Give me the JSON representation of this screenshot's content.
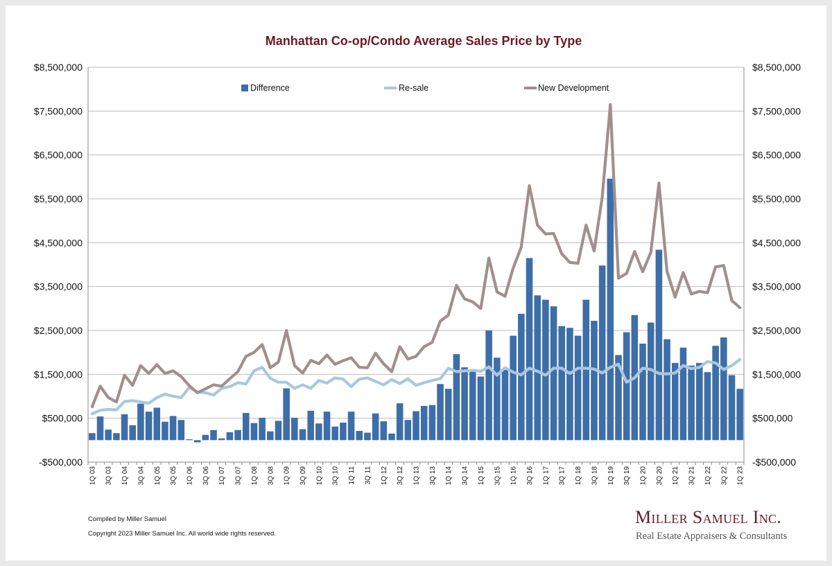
{
  "chart_data": {
    "type": "bar",
    "title": "Manhattan Co-op/Condo Average Sales Price by Type",
    "y_ticks": [
      "-$500,000",
      "$500,000",
      "$1,500,000",
      "$2,500,000",
      "$3,500,000",
      "$4,500,000",
      "$5,500,000",
      "$6,500,000",
      "$7,500,000",
      "$8,500,000"
    ],
    "ylim": [
      -500000,
      8500000
    ],
    "y2lim": [
      -500000,
      8500000
    ],
    "grid": true,
    "legend_placement": "top",
    "x_labels": [
      "1Q 03",
      "3Q 03",
      "1Q 04",
      "3Q 04",
      "1Q 05",
      "3Q 05",
      "1Q 06",
      "3Q 06",
      "1Q 07",
      "3Q 07",
      "1Q 08",
      "3Q 08",
      "1Q 09",
      "3Q 09",
      "1Q 10",
      "3Q 10",
      "1Q 11",
      "3Q 11",
      "1Q 12",
      "3Q 12",
      "1Q 13",
      "3Q 13",
      "1Q 14",
      "3Q 14",
      "1Q 15",
      "3Q 15",
      "1Q 16",
      "3Q 16",
      "1Q 17",
      "3Q 17",
      "1Q 18",
      "3Q 18",
      "1Q 19",
      "3Q 19",
      "1Q 20",
      "3Q 20",
      "1Q 21",
      "3Q 21",
      "1Q 22",
      "3Q 22",
      "1Q 23"
    ],
    "series": [
      {
        "name": "Difference",
        "type": "bar",
        "color": "#3e6ea8",
        "values": [
          160000,
          540000,
          240000,
          160000,
          590000,
          340000,
          830000,
          650000,
          740000,
          420000,
          550000,
          460000,
          20000,
          -50000,
          120000,
          230000,
          40000,
          180000,
          230000,
          620000,
          390000,
          510000,
          200000,
          440000,
          1180000,
          510000,
          250000,
          670000,
          380000,
          650000,
          310000,
          400000,
          650000,
          210000,
          170000,
          610000,
          430000,
          150000,
          840000,
          460000,
          660000,
          780000,
          800000,
          1280000,
          1170000,
          1960000,
          1660000,
          1580000,
          1450000,
          2500000,
          1880000,
          1600000,
          2380000,
          2880000,
          4150000,
          3300000,
          3200000,
          3050000,
          2600000,
          2560000,
          2380000,
          3200000,
          2720000,
          3980000,
          5960000,
          1940000,
          2460000,
          2850000,
          2200000,
          2680000,
          4340000,
          2300000,
          1760000,
          2110000,
          1700000,
          1760000,
          1550000,
          2150000,
          2340000,
          1480000,
          1170000
        ]
      },
      {
        "name": "Re-sale",
        "type": "line",
        "color": "#a9c8de",
        "values": [
          600000,
          680000,
          700000,
          690000,
          880000,
          900000,
          870000,
          840000,
          970000,
          1050000,
          1000000,
          970000,
          1200000,
          1100000,
          1080000,
          1030000,
          1180000,
          1220000,
          1310000,
          1280000,
          1580000,
          1660000,
          1410000,
          1320000,
          1320000,
          1180000,
          1260000,
          1180000,
          1360000,
          1300000,
          1420000,
          1390000,
          1220000,
          1390000,
          1420000,
          1340000,
          1260000,
          1380000,
          1290000,
          1400000,
          1250000,
          1310000,
          1360000,
          1400000,
          1640000,
          1560000,
          1580000,
          1590000,
          1570000,
          1670000,
          1480000,
          1650000,
          1550000,
          1490000,
          1640000,
          1570000,
          1480000,
          1640000,
          1640000,
          1520000,
          1640000,
          1640000,
          1620000,
          1530000,
          1660000,
          1730000,
          1320000,
          1420000,
          1640000,
          1610000,
          1520000,
          1510000,
          1530000,
          1700000,
          1630000,
          1660000,
          1790000,
          1760000,
          1610000,
          1700000,
          1840000
        ]
      },
      {
        "name": "New Development",
        "type": "line",
        "color": "#a18f8e",
        "values": [
          760000,
          1230000,
          970000,
          870000,
          1480000,
          1250000,
          1700000,
          1520000,
          1720000,
          1520000,
          1580000,
          1450000,
          1240000,
          1080000,
          1170000,
          1260000,
          1230000,
          1400000,
          1560000,
          1910000,
          2000000,
          2180000,
          1650000,
          1780000,
          2500000,
          1700000,
          1530000,
          1820000,
          1740000,
          1940000,
          1730000,
          1810000,
          1880000,
          1660000,
          1650000,
          1980000,
          1740000,
          1560000,
          2130000,
          1850000,
          1910000,
          2130000,
          2230000,
          2710000,
          2850000,
          3530000,
          3220000,
          3150000,
          3000000,
          4150000,
          3380000,
          3280000,
          3920000,
          4400000,
          5800000,
          4900000,
          4700000,
          4710000,
          4250000,
          4050000,
          4030000,
          4900000,
          4310000,
          5540000,
          7650000,
          3690000,
          3800000,
          4300000,
          3840000,
          4280000,
          5860000,
          3850000,
          3260000,
          3820000,
          3330000,
          3390000,
          3360000,
          3950000,
          3980000,
          3180000,
          3020000
        ]
      }
    ]
  },
  "footer": {
    "compiled": "Compiled by Miller Samuel",
    "copyright": "Copyright 2023 Miller Samuel Inc.  All world wide rights reserved."
  },
  "logo": {
    "name": "Miller Samuel Inc.",
    "tagline": "Real Estate Appraisers & Consultants"
  }
}
